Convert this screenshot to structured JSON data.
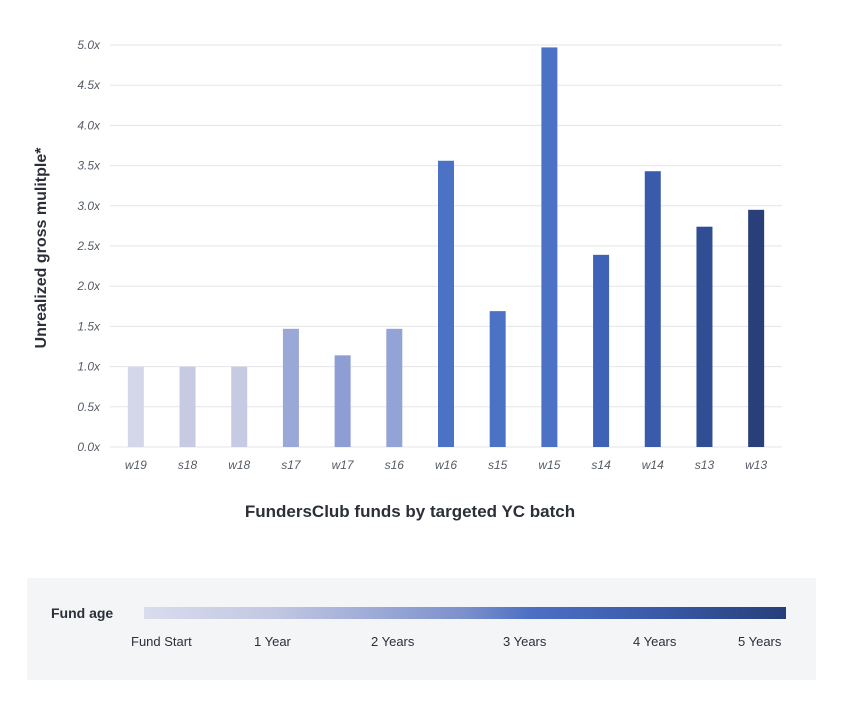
{
  "chart_data": {
    "type": "bar",
    "title": "",
    "xlabel": "FundersClub funds by targeted YC batch",
    "ylabel": "Unrealized gross mulitple*",
    "ylim": [
      0,
      5.0
    ],
    "y_ticks": [
      "0.0x",
      "0.5x",
      "1.0x",
      "1.5x",
      "2.0x",
      "2.5x",
      "3.0x",
      "3.5x",
      "4.0x",
      "4.5x",
      "5.0x"
    ],
    "grid": "horizontal",
    "categories": [
      "w19",
      "s18",
      "w18",
      "s17",
      "w17",
      "s16",
      "w16",
      "s15",
      "w15",
      "s14",
      "w14",
      "s13",
      "w13"
    ],
    "values": [
      1.0,
      1.0,
      1.0,
      1.47,
      1.14,
      1.47,
      3.56,
      1.69,
      4.97,
      2.39,
      3.43,
      2.74,
      2.95
    ],
    "bar_colors": [
      "#d4d7ea",
      "#c6cbe3",
      "#c6cbe3",
      "#9aa8d8",
      "#8e9dd3",
      "#93a3d6",
      "#4c72c6",
      "#4c72c6",
      "#4c72c6",
      "#3d62b6",
      "#3a5bab",
      "#2f4e94",
      "#283f7a"
    ]
  },
  "legend": {
    "title": "Fund age",
    "ticks": [
      "Fund Start",
      "1 Year",
      "2 Years",
      "3 Years",
      "4 Years",
      "5 Years"
    ]
  }
}
